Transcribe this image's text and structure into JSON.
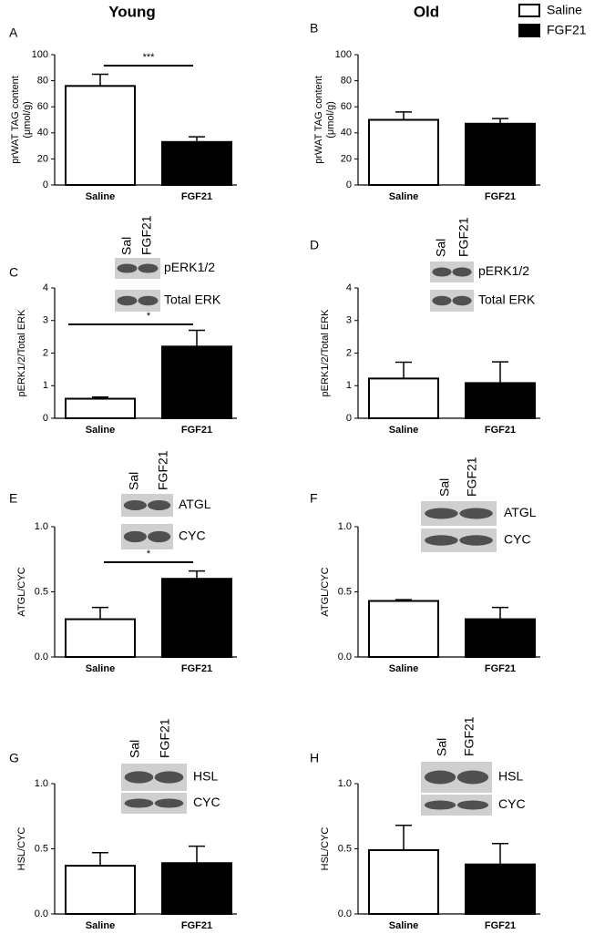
{
  "headers": [
    "Young",
    "Old"
  ],
  "legend": [
    {
      "name": "Saline",
      "color": "#ffffff"
    },
    {
      "name": "FGF21",
      "color": "#000000"
    }
  ],
  "chart_data": [
    {
      "type": "bar",
      "panel": "A",
      "ylabel": [
        "prWAT TAG content",
        "(μmol/g)"
      ],
      "categories": [
        "Saline",
        "FGF21"
      ],
      "values": [
        76,
        33
      ],
      "errors": [
        9,
        4
      ],
      "colors": [
        "#ffffff",
        "#000000"
      ],
      "ylim": [
        0,
        100
      ],
      "yticks": [
        0,
        20,
        40,
        60,
        80,
        100
      ],
      "significance": "***"
    },
    {
      "type": "bar",
      "panel": "B",
      "ylabel": [
        "prWAT TAG content",
        "(μmol/g)"
      ],
      "categories": [
        "Saline",
        "FGF21"
      ],
      "values": [
        50,
        47
      ],
      "errors": [
        6,
        4
      ],
      "colors": [
        "#ffffff",
        "#000000"
      ],
      "ylim": [
        0,
        100
      ],
      "yticks": [
        0,
        20,
        40,
        60,
        80,
        100
      ]
    },
    {
      "type": "bar",
      "panel": "C",
      "ylabel": [
        "pERK1/2/Total ERK"
      ],
      "categories": [
        "Saline",
        "FGF21"
      ],
      "values": [
        0.6,
        2.2
      ],
      "errors": [
        0.05,
        0.5
      ],
      "colors": [
        "#ffffff",
        "#000000"
      ],
      "ylim": [
        0,
        4
      ],
      "yticks": [
        0,
        1,
        2,
        3,
        4
      ],
      "significance": "*",
      "blot": {
        "lanes": [
          "Sal",
          "FGF21"
        ],
        "bands": [
          "pERK1/2",
          "Total  ERK"
        ]
      }
    },
    {
      "type": "bar",
      "panel": "D",
      "ylabel": [
        "pERK1/2/Total ERK"
      ],
      "categories": [
        "Saline",
        "FGF21"
      ],
      "values": [
        1.22,
        1.08
      ],
      "errors": [
        0.5,
        0.65
      ],
      "colors": [
        "#ffffff",
        "#000000"
      ],
      "ylim": [
        0,
        4
      ],
      "yticks": [
        0,
        1,
        2,
        3,
        4
      ],
      "blot": {
        "lanes": [
          "Sal",
          "FGF21"
        ],
        "bands": [
          "pERK1/2",
          "Total  ERK"
        ]
      }
    },
    {
      "type": "bar",
      "panel": "E",
      "ylabel": [
        "ATGL/CYC"
      ],
      "categories": [
        "Saline",
        "FGF21"
      ],
      "values": [
        0.29,
        0.6
      ],
      "errors": [
        0.09,
        0.06
      ],
      "colors": [
        "#ffffff",
        "#000000"
      ],
      "ylim": [
        0,
        1
      ],
      "yticks": [
        {
          "value": 0,
          "label": "0.0"
        },
        {
          "value": 0.5,
          "label": "0.5"
        },
        {
          "value": 1,
          "label": "1.0"
        }
      ],
      "significance": "*",
      "blot": {
        "lanes": [
          "Sal",
          "FGF21"
        ],
        "bands": [
          "ATGL",
          "CYC"
        ]
      }
    },
    {
      "type": "bar",
      "panel": "F",
      "ylabel": [
        "ATGL/CYC"
      ],
      "categories": [
        "Saline",
        "FGF21"
      ],
      "values": [
        0.43,
        0.29
      ],
      "errors": [
        0.01,
        0.09
      ],
      "colors": [
        "#ffffff",
        "#000000"
      ],
      "ylim": [
        0,
        1
      ],
      "yticks": [
        {
          "value": 0,
          "label": "0.0"
        },
        {
          "value": 0.5,
          "label": "0.5"
        },
        {
          "value": 1,
          "label": "1.0"
        }
      ],
      "blot": {
        "lanes": [
          "Sal",
          "FGF21"
        ],
        "bands": [
          "ATGL",
          "CYC"
        ]
      }
    },
    {
      "type": "bar",
      "panel": "G",
      "ylabel": [
        "HSL/CYC"
      ],
      "categories": [
        "Saline",
        "FGF21"
      ],
      "values": [
        0.37,
        0.39
      ],
      "errors": [
        0.1,
        0.13
      ],
      "colors": [
        "#ffffff",
        "#000000"
      ],
      "ylim": [
        0,
        1
      ],
      "yticks": [
        {
          "value": 0,
          "label": "0.0"
        },
        {
          "value": 0.5,
          "label": "0.5"
        },
        {
          "value": 1,
          "label": "1.0"
        }
      ],
      "blot": {
        "lanes": [
          "Sal",
          "FGF21"
        ],
        "bands": [
          "HSL",
          "CYC"
        ]
      }
    },
    {
      "type": "bar",
      "panel": "H",
      "ylabel": [
        "HSL/CYC"
      ],
      "categories": [
        "Saline",
        "FGF21"
      ],
      "values": [
        0.49,
        0.38
      ],
      "errors": [
        0.19,
        0.16
      ],
      "colors": [
        "#ffffff",
        "#000000"
      ],
      "ylim": [
        0,
        1
      ],
      "yticks": [
        {
          "value": 0,
          "label": "0.0"
        },
        {
          "value": 0.5,
          "label": "0.5"
        },
        {
          "value": 1,
          "label": "1.0"
        }
      ],
      "blot": {
        "lanes": [
          "Sal",
          "FGF21"
        ],
        "bands": [
          "HSL",
          "CYC"
        ]
      }
    }
  ]
}
